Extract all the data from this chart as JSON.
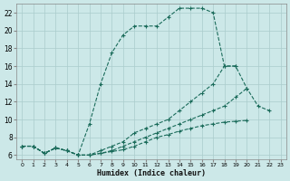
{
  "xlabel": "Humidex (Indice chaleur)",
  "background_color": "#cce8e8",
  "grid_color": "#aacccc",
  "line_color": "#1a6b5a",
  "xlim": [
    -0.5,
    23.5
  ],
  "ylim": [
    5.5,
    23.0
  ],
  "yticks": [
    6,
    8,
    10,
    12,
    14,
    16,
    18,
    20,
    22
  ],
  "xticks": [
    0,
    1,
    2,
    3,
    4,
    5,
    6,
    7,
    8,
    9,
    10,
    11,
    12,
    13,
    14,
    15,
    16,
    17,
    18,
    19,
    20,
    21,
    22,
    23
  ],
  "series": [
    {
      "x": [
        0,
        1,
        2,
        3,
        4,
        5,
        6,
        7,
        8,
        9,
        10,
        11,
        12,
        13,
        14,
        15,
        16,
        17,
        18,
        19,
        20,
        21,
        22,
        23
      ],
      "y": [
        7,
        7,
        6.2,
        6.8,
        6.5,
        6.0,
        9.5,
        14.0,
        17.5,
        19.5,
        20.5,
        20.5,
        20.5,
        21.5,
        22.5,
        22.5,
        22.5,
        22.0,
        16.0,
        16.0,
        null,
        null,
        null,
        null
      ]
    },
    {
      "x": [
        0,
        1,
        2,
        3,
        4,
        5,
        6,
        7,
        8,
        9,
        10,
        11,
        12,
        13,
        14,
        15,
        16,
        17,
        18,
        19,
        20,
        21,
        22,
        23
      ],
      "y": [
        7,
        7,
        6.2,
        6.8,
        6.5,
        6.0,
        6.0,
        6.5,
        7.0,
        7.5,
        8.5,
        9.0,
        9.5,
        10.0,
        11.0,
        12.0,
        13.0,
        14.0,
        16.0,
        16.0,
        13.5,
        11.5,
        11.0,
        null
      ]
    },
    {
      "x": [
        0,
        1,
        2,
        3,
        4,
        5,
        6,
        7,
        8,
        9,
        10,
        11,
        12,
        13,
        14,
        15,
        16,
        17,
        18,
        19,
        20,
        21,
        22,
        23
      ],
      "y": [
        7,
        7,
        6.2,
        6.8,
        6.5,
        6.0,
        6.0,
        6.2,
        6.5,
        7.0,
        7.5,
        8.0,
        8.5,
        9.0,
        9.5,
        10.0,
        10.5,
        11.0,
        11.5,
        12.5,
        13.5,
        null,
        null,
        null
      ]
    },
    {
      "x": [
        0,
        1,
        2,
        3,
        4,
        5,
        6,
        7,
        8,
        9,
        10,
        11,
        12,
        13,
        14,
        15,
        16,
        17,
        18,
        19,
        20,
        21,
        22,
        23
      ],
      "y": [
        7,
        7,
        6.2,
        6.8,
        6.5,
        6.0,
        6.0,
        6.2,
        6.4,
        6.6,
        7.0,
        7.5,
        8.0,
        8.3,
        8.7,
        9.0,
        9.3,
        9.5,
        9.7,
        9.8,
        9.9,
        null,
        null,
        null
      ]
    }
  ]
}
